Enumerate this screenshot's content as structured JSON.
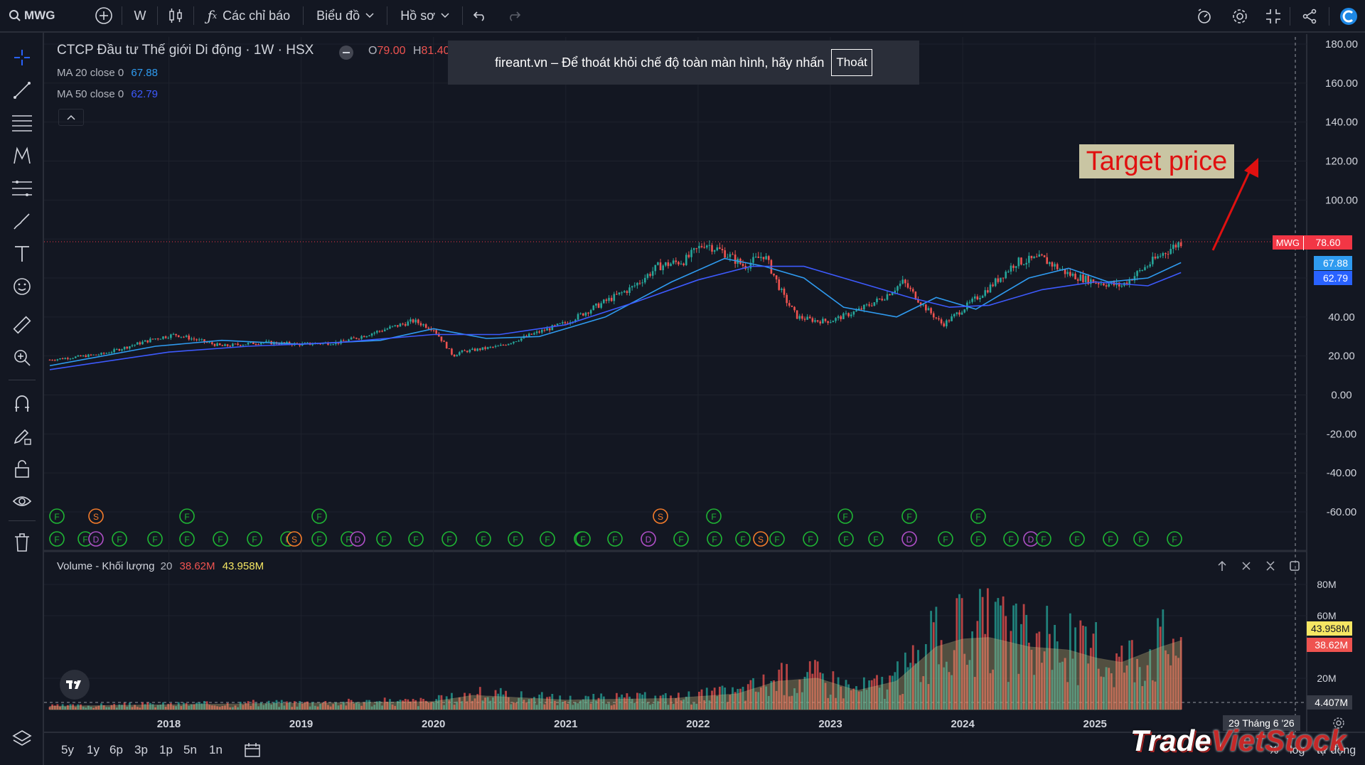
{
  "toolbar": {
    "symbol": "MWG",
    "interval": "W",
    "indicators_label": "Các chỉ báo",
    "chart_label": "Biểu đồ",
    "profile_label": "Hồ sơ"
  },
  "legend": {
    "title": "CTCP Đầu tư Thế giới Di động · 1W · HSX",
    "open_label": "O",
    "open_value": "79.00",
    "high_label": "H",
    "high_value": "81.40",
    "ma20_label": "MA 20 close 0",
    "ma20_value": "67.88",
    "ma50_label": "MA 50 close 0",
    "ma50_value": "62.79",
    "volume_label": "Volume - Khối lượng",
    "volume_period": "20",
    "volume_value1": "38.62M",
    "volume_value2": "43.958M"
  },
  "banner": {
    "text": "fireant.vn – Để thoát khỏi chế độ toàn màn hình, hãy nhấn",
    "button": "Thoát"
  },
  "price_labels": {
    "symbol_tag": "MWG",
    "last_price": "78.60",
    "ma20": "67.88",
    "ma50": "62.79"
  },
  "volume_labels": {
    "v1": "43.958M",
    "v2": "38.62M",
    "crosshair": "4.407M"
  },
  "crosshair_date": "29 Tháng 6 '26",
  "annotation": {
    "text": "Target price"
  },
  "periods": [
    "5y",
    "1y",
    "6p",
    "3p",
    "1p",
    "5n",
    "1n"
  ],
  "bottom_right": {
    "percent": "%",
    "log": "log",
    "auto": "tự động"
  },
  "watermark": {
    "part1": "Trade",
    "part2": "VietStock"
  },
  "colors": {
    "background": "#131722",
    "up": "#26a69a",
    "down": "#ef5350",
    "ma20": "#2f9bf0",
    "ma50": "#3d5afe",
    "event_f": "#1fb534",
    "event_s": "#f57c2b",
    "event_d": "#b04fc8"
  },
  "chart_data": [
    {
      "type": "line",
      "series_type": "candlestick-approx",
      "ylim": [
        -70,
        180
      ],
      "yticks": [
        180,
        160,
        140,
        120,
        100,
        80,
        60,
        40,
        20,
        0,
        -20,
        -40,
        -60
      ],
      "ytick_labels": [
        "180.00",
        "160.00",
        "140.00",
        "120.00",
        "100.00",
        "",
        "",
        "40.00",
        "20.00",
        "0.00",
        "-20.00",
        "-40.00",
        "-60.00"
      ],
      "x_tick_labels": [
        "2018",
        "2019",
        "2020",
        "2021",
        "2022",
        "2023",
        "2024",
        "2025"
      ],
      "x_tick_years": [
        2018,
        2019,
        2020,
        2021,
        2022,
        2023,
        2024,
        2025
      ],
      "xlim": [
        2017.1,
        2026.6
      ],
      "series": [
        {
          "name": "MWG",
          "x": [
            2017.1,
            2017.5,
            2017.9,
            2018.05,
            2018.4,
            2018.7,
            2019.0,
            2019.3,
            2019.7,
            2019.85,
            2020.0,
            2020.15,
            2020.2,
            2020.5,
            2020.7,
            2021.0,
            2021.3,
            2021.5,
            2021.7,
            2021.9,
            2022.05,
            2022.2,
            2022.35,
            2022.5,
            2022.65,
            2022.75,
            2022.9,
            2023.0,
            2023.2,
            2023.4,
            2023.55,
            2023.7,
            2023.85,
            2024.0,
            2024.2,
            2024.4,
            2024.6,
            2024.8,
            2025.0,
            2025.2,
            2025.35,
            2025.5,
            2025.65
          ],
          "values": [
            18,
            21,
            29,
            31,
            25,
            27,
            26,
            27,
            35,
            38,
            34,
            20,
            22,
            25,
            30,
            37,
            48,
            55,
            66,
            69,
            78,
            73,
            66,
            72,
            50,
            40,
            38,
            38,
            43,
            50,
            58,
            46,
            36,
            44,
            55,
            68,
            70,
            62,
            58,
            56,
            64,
            72,
            78.6
          ]
        },
        {
          "name": "MA 20",
          "x": [
            2017.1,
            2017.9,
            2018.4,
            2019.0,
            2019.6,
            2020.0,
            2020.4,
            2020.8,
            2021.3,
            2021.8,
            2022.2,
            2022.5,
            2022.8,
            2023.1,
            2023.5,
            2023.8,
            2024.1,
            2024.5,
            2024.8,
            2025.1,
            2025.4,
            2025.65
          ],
          "values": [
            15,
            25,
            28,
            26,
            28,
            34,
            29,
            30,
            40,
            58,
            70,
            66,
            60,
            45,
            40,
            50,
            44,
            60,
            65,
            58,
            60,
            67.88
          ]
        },
        {
          "name": "MA 50",
          "x": [
            2017.1,
            2018.0,
            2018.6,
            2019.3,
            2020.0,
            2020.5,
            2021.0,
            2021.5,
            2022.0,
            2022.4,
            2022.8,
            2023.2,
            2023.6,
            2023.9,
            2024.2,
            2024.6,
            2025.0,
            2025.4,
            2025.65
          ],
          "values": [
            13,
            22,
            25,
            27,
            31,
            31,
            36,
            47,
            59,
            66,
            66,
            58,
            50,
            45,
            46,
            54,
            58,
            56,
            62.79
          ]
        }
      ]
    },
    {
      "type": "bar",
      "series_type": "volume",
      "ylim": [
        0,
        90
      ],
      "ytick_labels": [
        "80M",
        "60M",
        "20M"
      ],
      "yticks": [
        80,
        60,
        20
      ],
      "x": [
        2017.1,
        2018.0,
        2019.0,
        2020.0,
        2020.3,
        2021.0,
        2021.8,
        2022.3,
        2022.6,
        2022.9,
        2023.2,
        2023.5,
        2023.8,
        2024.0,
        2024.2,
        2024.5,
        2024.8,
        2025.0,
        2025.2,
        2025.5,
        2025.65
      ],
      "values": [
        2,
        3,
        4,
        5,
        9,
        6,
        7,
        10,
        18,
        20,
        12,
        18,
        40,
        45,
        46,
        40,
        38,
        33,
        30,
        40,
        43.958
      ]
    }
  ]
}
